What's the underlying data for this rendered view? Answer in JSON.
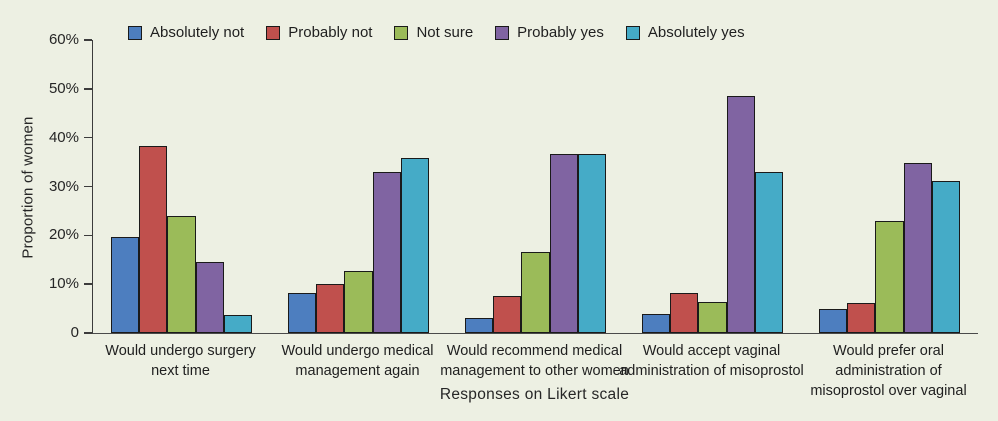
{
  "figure": {
    "background_color": "#edf0e3",
    "text_color": "#1f1f1f",
    "axis_color": "#3c3c3c",
    "bar_outline_color": "#1a1a1a"
  },
  "chart_data": {
    "type": "bar",
    "title": "",
    "xlabel": "Responses on Likert scale",
    "ylabel": "Proportion of women",
    "ylim": [
      0,
      60
    ],
    "ytick_interval": 10,
    "ytick_labels": [
      "0",
      "10%",
      "20%",
      "30%",
      "40%",
      "50%",
      "60%"
    ],
    "grid": false,
    "legend_position": "top",
    "categories": [
      "Would undergo surgery next time",
      "Would undergo medical management again",
      "Would recommend medical management to other women",
      "Would accept vaginal administration of misoprostol",
      "Would prefer oral administration of misoprostol over vaginal"
    ],
    "categories_lines": [
      [
        "Would undergo surgery",
        "next time"
      ],
      [
        "Would undergo medical",
        "management again"
      ],
      [
        "Would recommend medical",
        "management to other women"
      ],
      [
        "Would accept vaginal",
        "administration of misoprostol"
      ],
      [
        "Would prefer oral",
        "administration of",
        "misoprostol over vaginal"
      ]
    ],
    "series": [
      {
        "name": "Absolutely not",
        "color": "#4d7ebf",
        "values": [
          19.6,
          8.2,
          3.0,
          3.9,
          5.0
        ]
      },
      {
        "name": "Probably not",
        "color": "#c0504d",
        "values": [
          38.3,
          10.1,
          7.6,
          8.2,
          6.2
        ]
      },
      {
        "name": "Not sure",
        "color": "#9bbb59",
        "values": [
          23.9,
          12.7,
          16.5,
          6.4,
          23.0
        ]
      },
      {
        "name": "Probably yes",
        "color": "#8064a2",
        "values": [
          14.6,
          33.0,
          36.6,
          48.5,
          34.8
        ]
      },
      {
        "name": "Absolutely yes",
        "color": "#45abc7",
        "values": [
          3.7,
          35.8,
          36.6,
          33.0,
          31.1
        ]
      }
    ]
  }
}
